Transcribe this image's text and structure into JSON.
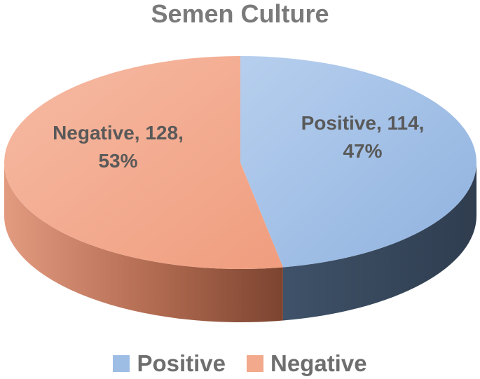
{
  "chart_data": {
    "type": "pie",
    "title": "Semen Culture",
    "style": "3d",
    "categories": [
      "Positive",
      "Negative"
    ],
    "values": [
      114,
      128
    ],
    "percentages": [
      "47%",
      "53%"
    ],
    "data_labels": [
      "Positive, 114,\n47%",
      "Negative, 128,\n53%"
    ],
    "colors": {
      "Positive": "#9dbde5",
      "Negative": "#f2a98c"
    },
    "legend": {
      "placement": "bottom",
      "entries": [
        "Positive",
        "Negative"
      ]
    }
  }
}
